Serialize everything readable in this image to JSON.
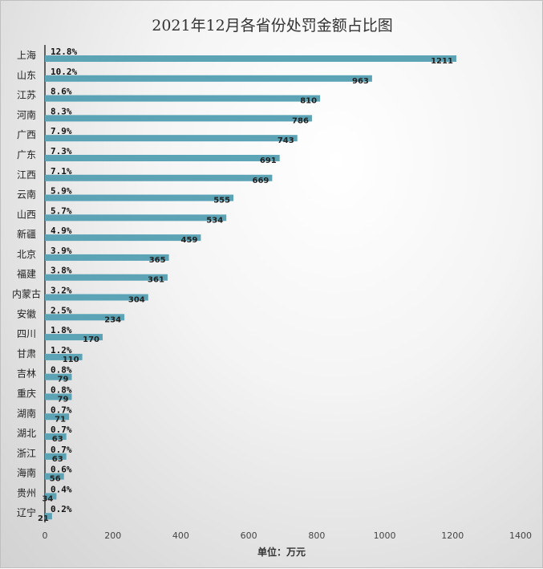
{
  "chart_data": {
    "type": "bar",
    "orientation": "horizontal",
    "title": "2021年12月各省份处罚金额占比图",
    "xlabel": "单位：万元",
    "ylabel": "",
    "xlim": [
      0,
      1400
    ],
    "x_ticks": [
      "0",
      "200",
      "400",
      "600",
      "800",
      "1000",
      "1200",
      "1400"
    ],
    "categories": [
      "上海",
      "山东",
      "江苏",
      "河南",
      "广西",
      "广东",
      "江西",
      "云南",
      "山西",
      "新疆",
      "北京",
      "福建",
      "内蒙古",
      "安徽",
      "四川",
      "甘肃",
      "吉林",
      "重庆",
      "湖南",
      "湖北",
      "浙江",
      "海南",
      "贵州",
      "辽宁"
    ],
    "values": [
      1211,
      963,
      810,
      786,
      743,
      691,
      669,
      555,
      534,
      459,
      365,
      361,
      304,
      234,
      170,
      110,
      79,
      79,
      71,
      63,
      63,
      56,
      34,
      21
    ],
    "percent_labels": [
      "12.8%",
      "10.2%",
      "8.6%",
      "8.3%",
      "7.9%",
      "7.3%",
      "7.1%",
      "5.9%",
      "5.7%",
      "4.9%",
      "3.9%",
      "3.8%",
      "3.2%",
      "2.5%",
      "1.8%",
      "1.2%",
      "0.8%",
      "0.8%",
      "0.7%",
      "0.7%",
      "0.7%",
      "0.6%",
      "0.4%",
      "0.2%"
    ],
    "grid": false,
    "legend": "none",
    "bar_color": "#5ba3b5"
  }
}
